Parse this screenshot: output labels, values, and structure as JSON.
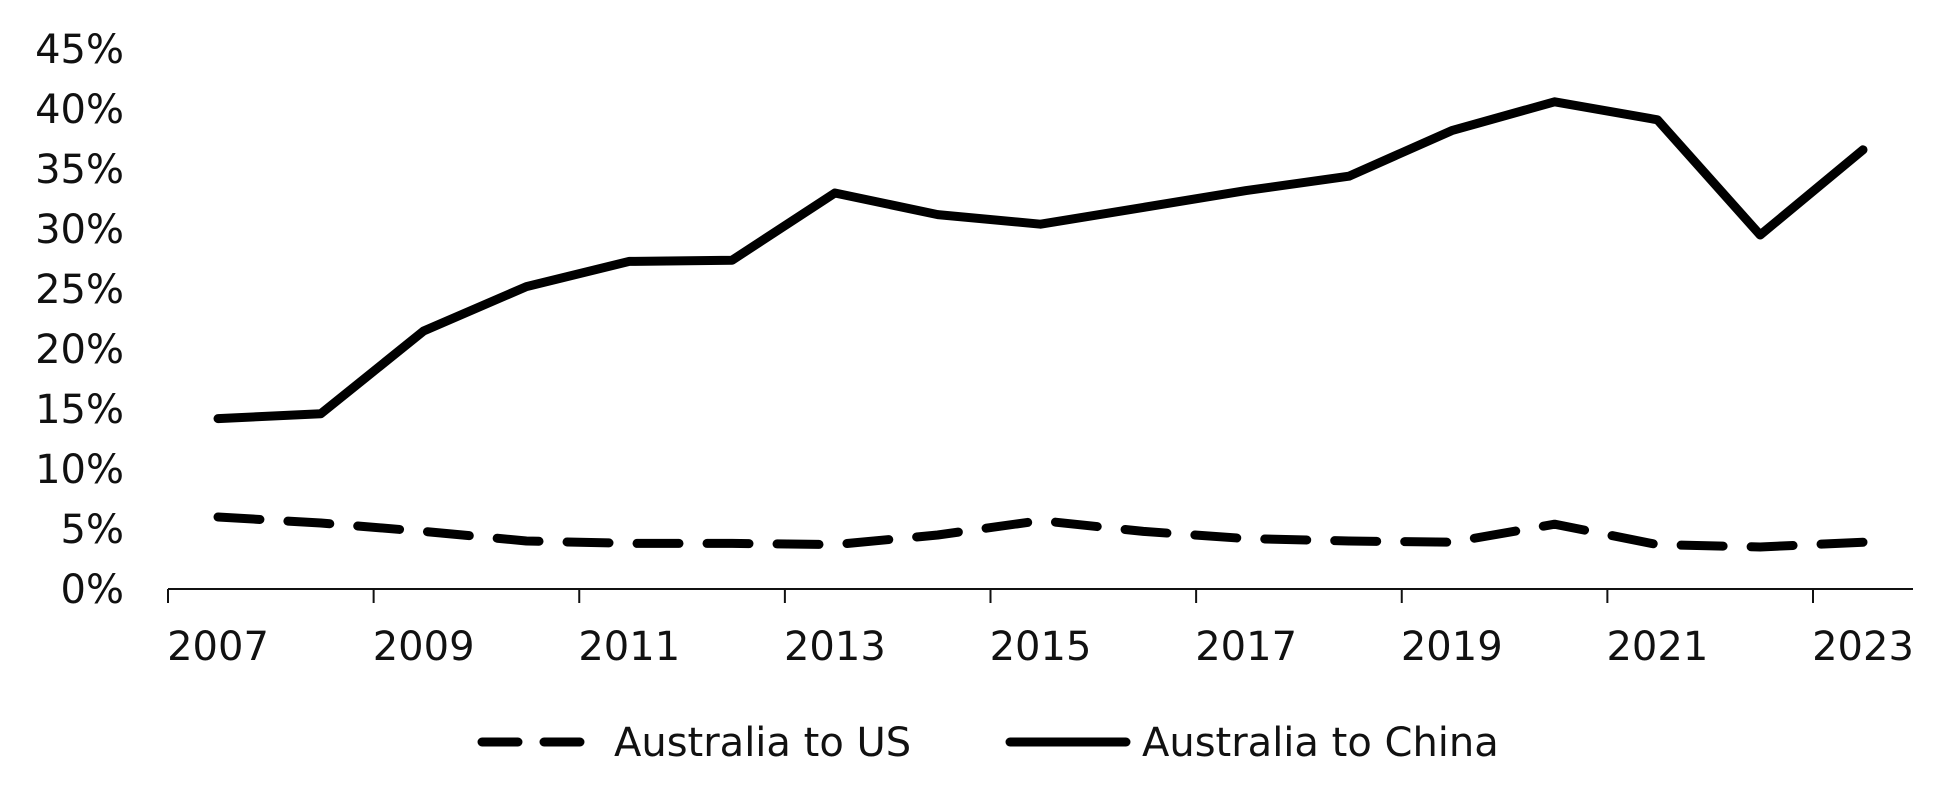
{
  "chart_data": {
    "type": "line",
    "title": "",
    "xlabel": "",
    "ylabel": "",
    "x": [
      2007,
      2008,
      2009,
      2010,
      2011,
      2012,
      2013,
      2014,
      2015,
      2016,
      2017,
      2018,
      2019,
      2020,
      2021,
      2022,
      2023
    ],
    "x_tick_labels": [
      "2007",
      "2009",
      "2011",
      "2013",
      "2015",
      "2017",
      "2019",
      "2021",
      "2023"
    ],
    "y_tick_labels": [
      "0%",
      "5%",
      "10%",
      "15%",
      "20%",
      "25%",
      "30%",
      "35%",
      "40%",
      "45%"
    ],
    "ylim": [
      0,
      45
    ],
    "grid": false,
    "legend_position": "bottom",
    "series": [
      {
        "name": "Australia to US",
        "style": "dashed",
        "color": "#000000",
        "values": [
          6.0,
          5.5,
          4.8,
          4.0,
          3.8,
          3.8,
          3.7,
          4.5,
          5.7,
          4.8,
          4.2,
          4.0,
          3.9,
          5.4,
          3.7,
          3.5,
          3.9
        ]
      },
      {
        "name": "Australia to China",
        "style": "solid",
        "color": "#000000",
        "values": [
          14.2,
          14.6,
          21.5,
          25.2,
          27.3,
          27.4,
          33.0,
          31.2,
          30.4,
          31.8,
          33.2,
          34.4,
          38.2,
          40.6,
          39.1,
          29.5,
          36.6
        ]
      }
    ]
  }
}
